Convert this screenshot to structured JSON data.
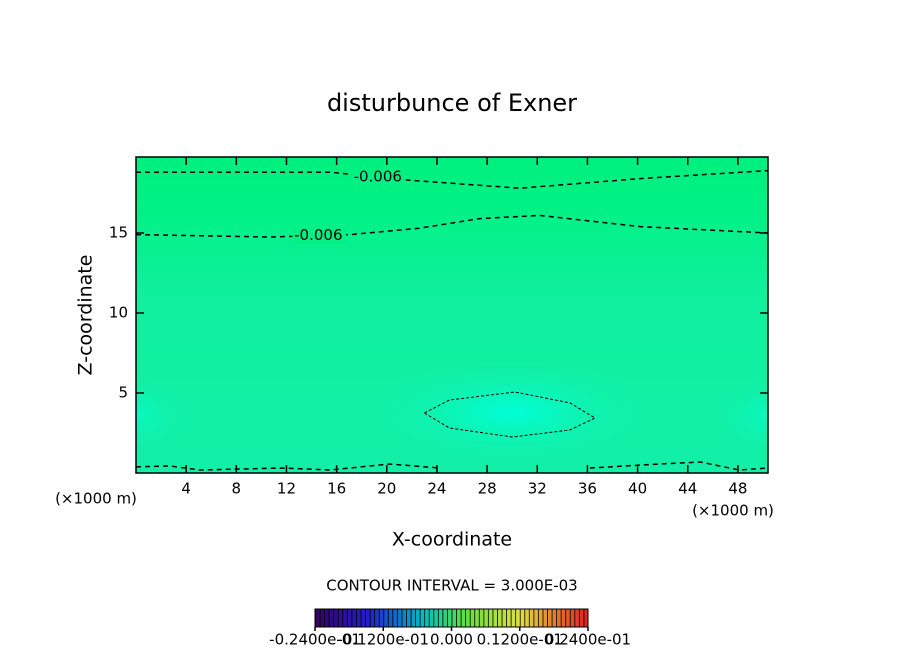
{
  "chart_data": {
    "type": "contour",
    "title": "disturbunce of Exner",
    "x_label": "X-coordinate",
    "y_label": "Z-coordinate",
    "x_unit": "(×1000 m)",
    "x_unit_right": "(×1000 m)",
    "subtitle": "CONTOUR INTERVAL = 3.000E-03",
    "xlim": [
      0,
      50.4
    ],
    "ylim": [
      0,
      19.75
    ],
    "xticks": [
      4,
      8,
      12,
      16,
      20,
      24,
      28,
      32,
      36,
      40,
      44,
      48
    ],
    "yticks": [
      5,
      10,
      15
    ],
    "contours": [
      {
        "level": -0.006,
        "label": "-0.006",
        "x": [
          0,
          15.5,
          21.8,
          30.6,
          40.2,
          50.4
        ],
        "y": [
          18.8,
          18.8,
          18.3,
          17.8,
          18.4,
          18.9
        ]
      },
      {
        "level": -0.006,
        "label": "-0.006",
        "x": [
          0,
          10.7,
          17.1,
          22.6,
          27.4,
          32.2,
          40.2,
          50.4
        ],
        "y": [
          14.9,
          14.75,
          14.9,
          15.3,
          15.9,
          16.1,
          15.4,
          15
        ]
      },
      {
        "level": -0.003,
        "x": [
          23,
          25,
          30.2,
          34.6,
          36.6,
          34.6,
          30,
          25,
          23
        ],
        "y": [
          3.75,
          4.56,
          5.06,
          4.38,
          3.44,
          2.69,
          2.25,
          2.81,
          3.75
        ]
      },
      {
        "level": -0.009,
        "x": [
          0,
          2.7,
          5.1,
          11.7,
          15.5,
          20.2,
          24.2,
          null,
          36.2,
          41.8,
          45,
          48.1,
          50.4
        ],
        "y": [
          0.38,
          0.44,
          0.19,
          0.31,
          0.19,
          0.56,
          0.31,
          null,
          0.31,
          0.56,
          0.69,
          0.19,
          0.31
        ]
      }
    ],
    "colorbar": {
      "lim": [
        -0.024,
        0.024
      ],
      "ticks": [
        {
          "value": -0.024,
          "label": "-0.2400e-01"
        },
        {
          "value": -0.012,
          "label": "-0.1200e-01"
        },
        {
          "value": 0,
          "label": "0.000"
        },
        {
          "value": 0.012,
          "label": "0.1200e-01"
        },
        {
          "value": 0.024,
          "label": "0.2400e-01"
        }
      ]
    }
  }
}
